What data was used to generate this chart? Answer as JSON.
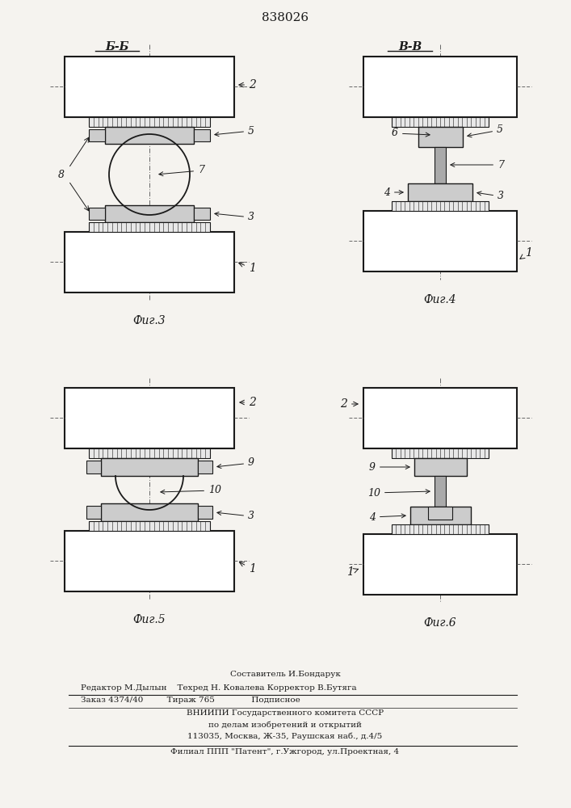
{
  "patent_number": "838026",
  "bg": "#f5f3ef",
  "lc": "#1a1a1a",
  "fig3_caption": "Фиг.3",
  "fig4_caption": "Фиг.4",
  "fig5_caption": "Фиг.5",
  "fig6_caption": "Фиг.6",
  "label_bb": "Б-Б",
  "label_vv": "В-В",
  "footer": [
    "Составитель И.Бондарук",
    "Редактор М.Дылын    Техред Н. Ковалева Корректор В.Бутяга",
    "Заказ 4374/40         Тираж 765              Подписное",
    "ВНИИПИ Государственного комитета СССР",
    "по делам изобретений и открытий",
    "113035, Москва, Ж-35, Раушская наб., д.4/5",
    "Филиал ППП \"Патент\", г.Ужгород, ул.Проектная, 4"
  ]
}
